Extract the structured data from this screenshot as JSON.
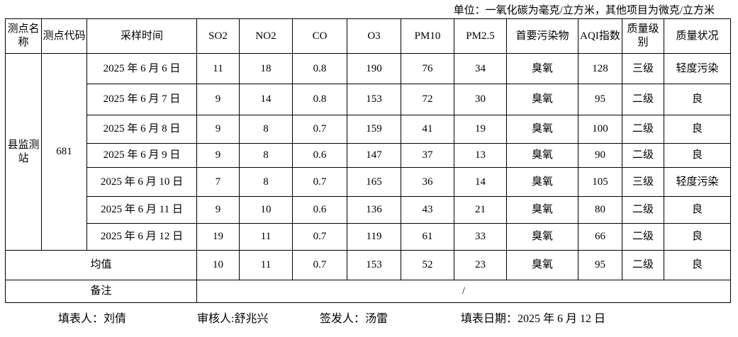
{
  "unit_note": "单位：一氧化碳为毫克/立方米，其他项目为微克/立方米",
  "headers": [
    "测点名称",
    "测点代码",
    "采样时间",
    "SO2",
    "NO2",
    "CO",
    "O3",
    "PM10",
    "PM2.5",
    "首要污染物",
    "AQI指数",
    "质量级别",
    "质量状况"
  ],
  "station_name": "县监测站",
  "station_code": "681",
  "rows": [
    [
      "2025 年 6 月 6 日",
      "11",
      "18",
      "0.8",
      "190",
      "76",
      "34",
      "臭氧",
      "128",
      "三级",
      "轻度污染"
    ],
    [
      "2025 年 6 月 7 日",
      "9",
      "14",
      "0.8",
      "153",
      "72",
      "30",
      "臭氧",
      "95",
      "二级",
      "良"
    ],
    [
      "2025 年 6 月 8 日",
      "9",
      "8",
      "0.7",
      "159",
      "41",
      "19",
      "臭氧",
      "100",
      "二级",
      "良"
    ],
    [
      "2025 年 6 月 9 日",
      "9",
      "8",
      "0.6",
      "147",
      "37",
      "13",
      "臭氧",
      "90",
      "二级",
      "良"
    ],
    [
      "2025 年 6 月 10 日",
      "7",
      "8",
      "0.7",
      "165",
      "36",
      "14",
      "臭氧",
      "105",
      "三级",
      "轻度污染"
    ],
    [
      "2025 年 6 月 11 日",
      "9",
      "10",
      "0.6",
      "136",
      "43",
      "21",
      "臭氧",
      "80",
      "二级",
      "良"
    ],
    [
      "2025 年 6 月 12 日",
      "19",
      "11",
      "0.7",
      "119",
      "61",
      "33",
      "臭氧",
      "66",
      "二级",
      "良"
    ]
  ],
  "average": {
    "label": "均值",
    "values": [
      "10",
      "11",
      "0.7",
      "153",
      "52",
      "23",
      "臭氧",
      "95",
      "二级",
      "良"
    ]
  },
  "remark": {
    "label": "备注",
    "value": "/"
  },
  "footer": {
    "filler": "填表人：刘倩",
    "reviewer": "审核人:舒兆兴",
    "issuer": "签发人：汤雷",
    "date": "填表日期：2025 年 6 月 12 日"
  }
}
